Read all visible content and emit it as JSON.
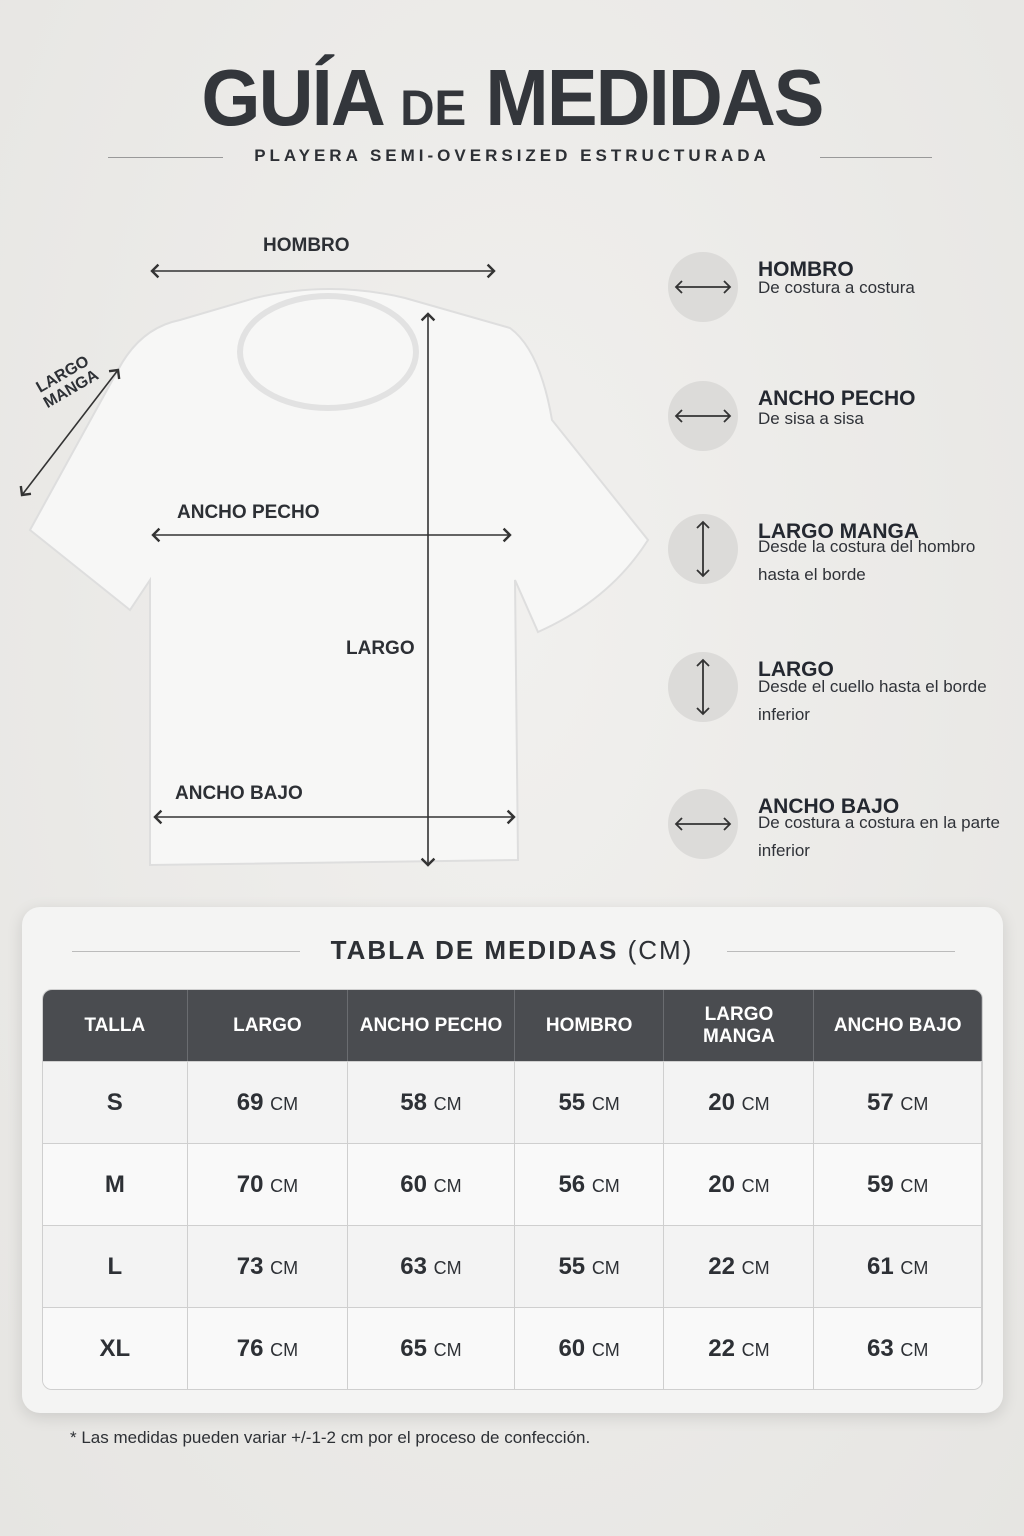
{
  "header": {
    "title_a": "GUÍA",
    "title_b": "DE",
    "title_c": "MEDIDAS",
    "subtitle": "PLAYERA SEMI-OVERSIZED ESTRUCTURADA"
  },
  "diagram": {
    "hombro": "HOMBRO",
    "largo_manga": "LARGO MANGA",
    "ancho_pecho": "ANCHO PECHO",
    "largo": "LARGO",
    "ancho_bajo": "ANCHO BAJO"
  },
  "legend": [
    {
      "icon": "horizontal-arrow",
      "title": "HOMBRO",
      "desc": "De costura a costura"
    },
    {
      "icon": "horizontal-arrow",
      "title": "ANCHO PECHO",
      "desc": "De sisa a sisa"
    },
    {
      "icon": "vertical-arrow",
      "title": "LARGO MANGA",
      "desc": "Desde la costura del hombro hasta el borde"
    },
    {
      "icon": "vertical-arrow",
      "title": "LARGO",
      "desc": "Desde el cuello hasta el borde inferior"
    },
    {
      "icon": "horizontal-arrow",
      "title": "ANCHO BAJO",
      "desc": "De costura a costura en la parte inferior"
    }
  ],
  "table": {
    "title": "TABLA DE MEDIDAS",
    "unit_title": "(CM)",
    "unit": "CM",
    "headers": [
      "TALLA",
      "LARGO",
      "ANCHO PECHO",
      "HOMBRO",
      "LARGO MANGA",
      "ANCHO BAJO"
    ],
    "rows": [
      [
        "S",
        "69",
        "58",
        "55",
        "20",
        "57"
      ],
      [
        "M",
        "70",
        "60",
        "56",
        "20",
        "59"
      ],
      [
        "L",
        "73",
        "63",
        "55",
        "22",
        "61"
      ],
      [
        "XL",
        "76",
        "65",
        "60",
        "22",
        "63"
      ]
    ]
  },
  "colors": {
    "header_bg": "#4a4c50",
    "text": "#2d3035",
    "background": "#eceae8"
  },
  "footnote": "* Las medidas pueden variar +/-1-2 cm por el proceso de confección."
}
